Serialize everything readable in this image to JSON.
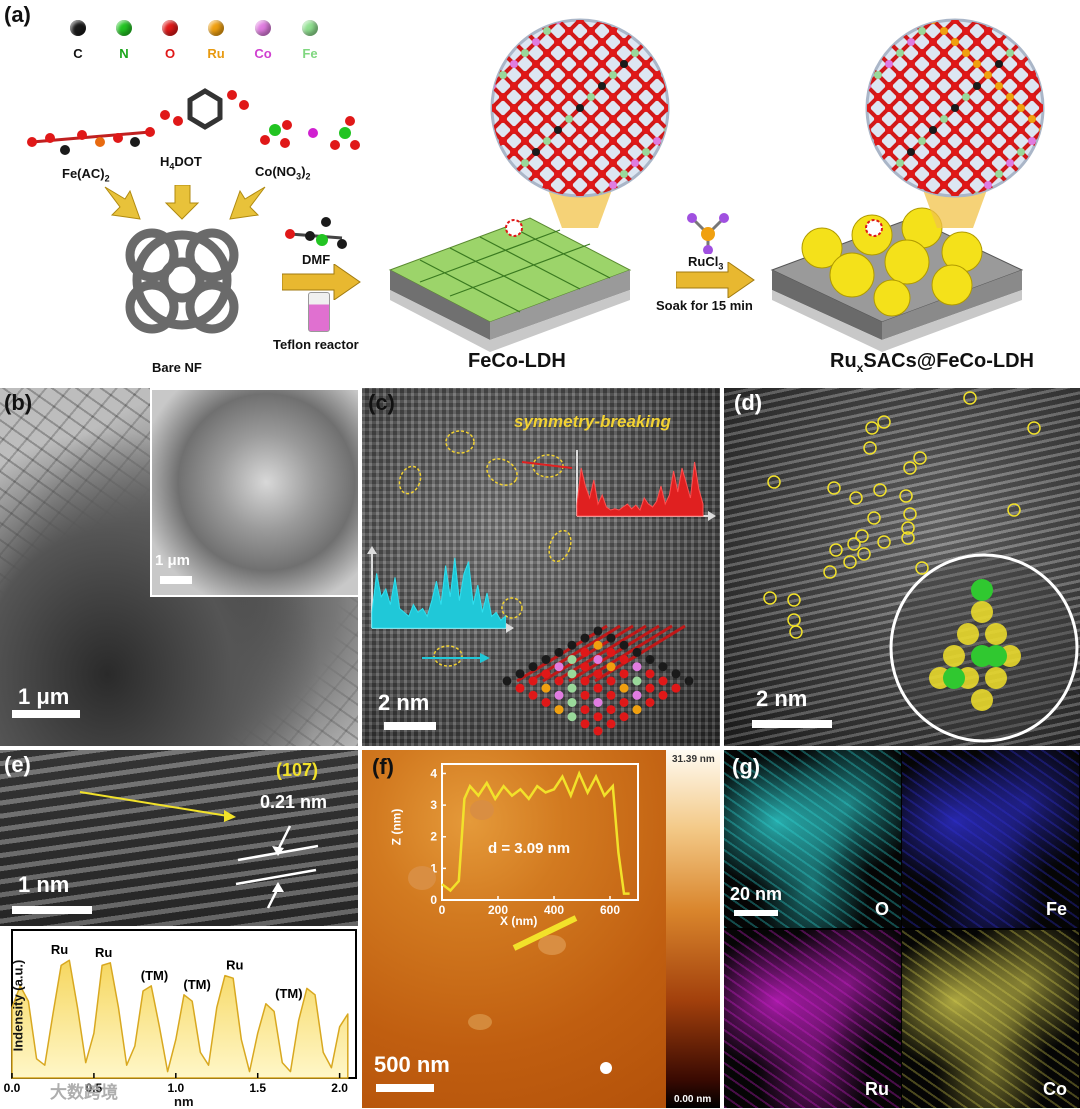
{
  "panels": {
    "a": "(a)",
    "b": "(b)",
    "c": "(c)",
    "d": "(d)",
    "e": "(e)",
    "f": "(f)",
    "g": "(g)"
  },
  "legend": [
    {
      "label": "C",
      "color": "#1a1a1a",
      "text_color": "#111111"
    },
    {
      "label": "N",
      "color": "#22c422",
      "text_color": "#1aa51a"
    },
    {
      "label": "O",
      "color": "#e01818",
      "text_color": "#e01818"
    },
    {
      "label": "Ru",
      "color": "#f0a010",
      "text_color": "#e89a10"
    },
    {
      "label": "Co",
      "color": "#e07ce0",
      "text_color": "#d040d0"
    },
    {
      "label": "Fe",
      "color": "#90e090",
      "text_color": "#7fd77f"
    }
  ],
  "scheme": {
    "fe_ac": "Fe(AC)",
    "fe_ac_sub": "2",
    "h4dot_pre": "H",
    "h4dot_sub": "4",
    "h4dot_post": "DOT",
    "co_no3": "Co(NO",
    "co_no3_sub1": "3",
    "co_no3_mid": ")",
    "co_no3_sub2": "2",
    "bare_nf": "Bare NF",
    "dmf": "DMF",
    "teflon": "Teflon reactor",
    "feco_ldh": "FeCo-LDH",
    "rucl_pre": "RuCl",
    "rucl_sub": "3",
    "soak": "Soak for 15 min",
    "ru_pre": "Ru",
    "ru_sub": "x",
    "ru_post": "SACs@FeCo-LDH"
  },
  "panel_b": {
    "inset_scale": "1 μm",
    "main_scale": "1 μm"
  },
  "panel_c": {
    "annotation": "symmetry-breaking",
    "scale": "2 nm"
  },
  "panel_d": {
    "scale": "2 nm"
  },
  "panel_e": {
    "plane": "(107)",
    "spacing": "0.21 nm",
    "scale": "1 nm",
    "ylabel": "Indensity (a.u.)",
    "xlabel": "nm",
    "xticks": [
      "0.0",
      "0.5",
      "1.0",
      "1.5",
      "2.0"
    ],
    "peak_labels": [
      "Ru",
      "Ru",
      "(TM)",
      "(TM)",
      "Ru",
      "(TM)"
    ]
  },
  "panel_f": {
    "scale": "500 nm",
    "colorbar_top": "31.39 nm",
    "colorbar_bottom": "0.00 nm",
    "inset_ylabel": "Z (nm)",
    "inset_xlabel": "X (nm)",
    "inset_note": "d = 3.09 nm",
    "inset_yticks": [
      "0",
      "1",
      "2",
      "3",
      "4"
    ],
    "inset_xticks": [
      "0",
      "200",
      "400",
      "600"
    ]
  },
  "panel_g": {
    "scale": "20 nm",
    "maps": [
      {
        "label": "O",
        "color": "#30d8d8"
      },
      {
        "label": "Fe",
        "color": "#3030d8"
      },
      {
        "label": "Ru",
        "color": "#d020d0"
      },
      {
        "label": "Co",
        "color": "#d8d050"
      }
    ]
  },
  "watermark": "大数跨境",
  "chart_data": [
    {
      "type": "line",
      "title": "",
      "xlabel": "nm",
      "ylabel": "Indensity (a.u.)",
      "xlim": [
        0,
        2.1
      ],
      "x": [
        0.0,
        0.05,
        0.1,
        0.15,
        0.2,
        0.25,
        0.3,
        0.35,
        0.4,
        0.45,
        0.5,
        0.55,
        0.6,
        0.65,
        0.7,
        0.75,
        0.8,
        0.85,
        0.9,
        0.95,
        1.0,
        1.05,
        1.1,
        1.15,
        1.2,
        1.25,
        1.3,
        1.35,
        1.4,
        1.45,
        1.5,
        1.55,
        1.6,
        1.65,
        1.7,
        1.75,
        1.8,
        1.85,
        1.9,
        1.95,
        2.0,
        2.05
      ],
      "values": [
        0.55,
        0.72,
        0.6,
        0.15,
        0.1,
        0.5,
        0.88,
        0.92,
        0.55,
        0.12,
        0.35,
        0.88,
        0.9,
        0.55,
        0.1,
        0.25,
        0.68,
        0.72,
        0.4,
        0.05,
        0.3,
        0.65,
        0.6,
        0.2,
        0.1,
        0.55,
        0.8,
        0.78,
        0.3,
        0.05,
        0.35,
        0.58,
        0.52,
        0.12,
        0.05,
        0.45,
        0.7,
        0.65,
        0.2,
        0.08,
        0.4,
        0.5
      ]
    },
    {
      "type": "line",
      "title": "",
      "xlabel": "X (nm)",
      "ylabel": "Z (nm)",
      "xlim": [
        0,
        700
      ],
      "ylim": [
        0,
        4.3
      ],
      "x": [
        0,
        30,
        60,
        80,
        100,
        130,
        160,
        190,
        220,
        250,
        280,
        310,
        340,
        370,
        400,
        430,
        460,
        490,
        520,
        550,
        580,
        610,
        630,
        650,
        670
      ],
      "values": [
        0.5,
        0.3,
        0.6,
        3.2,
        3.6,
        3.3,
        3.7,
        3.2,
        3.6,
        3.3,
        3.5,
        3.2,
        3.6,
        3.4,
        3.5,
        3.9,
        3.3,
        4.0,
        3.4,
        3.9,
        3.3,
        3.6,
        1.5,
        0.2,
        0.2
      ]
    }
  ]
}
